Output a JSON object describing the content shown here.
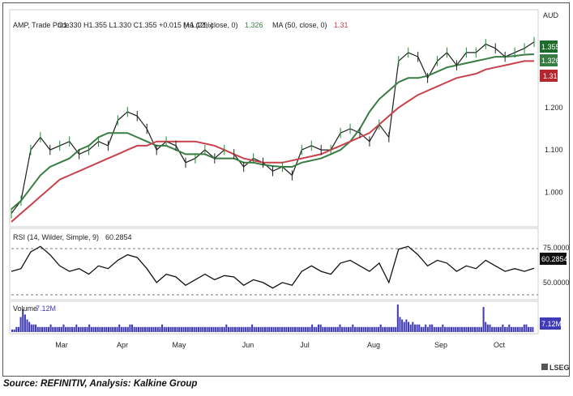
{
  "header": {
    "symbol": "AMP, Trade Price",
    "ohlc": "O1.330  H1.355  L1.330  C1.355  +0.015 (+1.12%)",
    "ma21_label": "MA (21, close, 0)",
    "ma21_value": "1.326",
    "ma50_label": "MA (50, close, 0)",
    "ma50_value": "1.31",
    "currency": "AUD"
  },
  "rsi_panel": {
    "label": "RSI (14, Wilder, Simple, 9)",
    "value": "60.2854"
  },
  "volume_panel": {
    "label": "Volume",
    "value": "7.12M"
  },
  "badges": {
    "price": "1.355",
    "ma21": "1.326",
    "ma50": "1.31",
    "rsi": "60.2854",
    "volume": "7.12M"
  },
  "logo": "LSEG",
  "source": "Source: REFINITIV, Analysis: Kalkine Group",
  "colors": {
    "price": "#1e1e1e",
    "ma21": "#3a7d44",
    "ma50": "#c8414b",
    "volume": "#3f3ab5",
    "up_badge": "#1f6b2a",
    "ma21_badge": "#3a7d44",
    "ma50_badge": "#b5262f"
  },
  "chart_data": [
    {
      "type": "line",
      "panel": "price",
      "x_axis_labels": [
        "Mar",
        "Apr",
        "May",
        "Jun",
        "Jul",
        "Aug",
        "Sep",
        "Oct"
      ],
      "y_ticks": [
        "1.000",
        "1.100",
        "1.200"
      ],
      "ylim": [
        0.93,
        1.37
      ],
      "series": [
        {
          "name": "AMP, Trade Price",
          "values": [
            0.95,
            0.98,
            1.1,
            1.13,
            1.1,
            1.11,
            1.12,
            1.09,
            1.1,
            1.12,
            1.11,
            1.17,
            1.19,
            1.18,
            1.15,
            1.1,
            1.12,
            1.11,
            1.07,
            1.08,
            1.1,
            1.08,
            1.1,
            1.09,
            1.06,
            1.08,
            1.07,
            1.05,
            1.06,
            1.04,
            1.1,
            1.11,
            1.1,
            1.1,
            1.14,
            1.15,
            1.14,
            1.12,
            1.16,
            1.13,
            1.31,
            1.33,
            1.32,
            1.27,
            1.31,
            1.33,
            1.3,
            1.33,
            1.33,
            1.35,
            1.34,
            1.32,
            1.33,
            1.34,
            1.355
          ]
        },
        {
          "name": "MA (21, close, 0)",
          "values": [
            0.96,
            0.98,
            1.01,
            1.04,
            1.06,
            1.07,
            1.08,
            1.1,
            1.11,
            1.13,
            1.14,
            1.14,
            1.14,
            1.13,
            1.12,
            1.11,
            1.11,
            1.1,
            1.09,
            1.09,
            1.09,
            1.08,
            1.08,
            1.08,
            1.07,
            1.07,
            1.065,
            1.062,
            1.06,
            1.06,
            1.07,
            1.075,
            1.08,
            1.09,
            1.1,
            1.12,
            1.15,
            1.19,
            1.22,
            1.24,
            1.26,
            1.27,
            1.27,
            1.275,
            1.285,
            1.295,
            1.3,
            1.305,
            1.31,
            1.315,
            1.32,
            1.32,
            1.322,
            1.325,
            1.326
          ]
        },
        {
          "name": "MA (50, close, 0)",
          "values": [
            0.93,
            0.95,
            0.97,
            0.99,
            1.01,
            1.03,
            1.04,
            1.05,
            1.06,
            1.07,
            1.08,
            1.09,
            1.1,
            1.11,
            1.11,
            1.12,
            1.12,
            1.12,
            1.12,
            1.12,
            1.115,
            1.11,
            1.1,
            1.09,
            1.08,
            1.075,
            1.07,
            1.07,
            1.07,
            1.075,
            1.08,
            1.085,
            1.09,
            1.1,
            1.11,
            1.12,
            1.13,
            1.14,
            1.16,
            1.18,
            1.2,
            1.215,
            1.23,
            1.24,
            1.25,
            1.26,
            1.27,
            1.275,
            1.28,
            1.29,
            1.295,
            1.3,
            1.305,
            1.31,
            1.31
          ]
        }
      ]
    },
    {
      "type": "line",
      "panel": "rsi",
      "y_ticks": [
        "75.0000",
        "50.0000"
      ],
      "ylim": [
        40,
        82
      ],
      "reference_lines": [
        70,
        30
      ],
      "series": [
        {
          "name": "RSI (14, Wilder, Simple, 9)",
          "values": [
            58,
            60,
            72,
            76,
            70,
            62,
            58,
            60,
            56,
            62,
            60,
            66,
            70,
            68,
            60,
            50,
            56,
            54,
            48,
            52,
            56,
            52,
            55,
            54,
            48,
            52,
            50,
            46,
            50,
            48,
            58,
            62,
            58,
            56,
            64,
            66,
            62,
            58,
            64,
            50,
            74,
            76,
            70,
            62,
            66,
            64,
            58,
            62,
            60,
            66,
            62,
            58,
            60,
            58,
            60.2854
          ]
        }
      ]
    },
    {
      "type": "bar",
      "panel": "volume",
      "series": [
        {
          "name": "Volume",
          "values": [
            1,
            1,
            2,
            2,
            6,
            9,
            7,
            5,
            4,
            3,
            3,
            3,
            2,
            2,
            2,
            2,
            2,
            2,
            3,
            2,
            2,
            2,
            2,
            2,
            3,
            2,
            2,
            2,
            2,
            2,
            3,
            2,
            2,
            2,
            2,
            2,
            3,
            2,
            2,
            2,
            2,
            2,
            2,
            2,
            2,
            2,
            2,
            2,
            2,
            2,
            3,
            2,
            2,
            2,
            2,
            3,
            3,
            2,
            2,
            2,
            2,
            2,
            2,
            2,
            2,
            2,
            2,
            2,
            2,
            2,
            3,
            2,
            2,
            2,
            2,
            2,
            2,
            2,
            2,
            2,
            2,
            2,
            2,
            2,
            2,
            2,
            2,
            2,
            2,
            2,
            2,
            2,
            2,
            2,
            2,
            2,
            2,
            2,
            2,
            2,
            3,
            2,
            2,
            2,
            2,
            2,
            2,
            2,
            2,
            2,
            2,
            2,
            3,
            2,
            2,
            2,
            2,
            2,
            2,
            2,
            2,
            2,
            2,
            2,
            2,
            2,
            2,
            2,
            2,
            2,
            2,
            2,
            2,
            2,
            2,
            2,
            2,
            2,
            2,
            2,
            3,
            2,
            2,
            3,
            3,
            2,
            2,
            2,
            2,
            2,
            2,
            2,
            2,
            3,
            2,
            2,
            2,
            2,
            2,
            3,
            2,
            2,
            2,
            2,
            2,
            2,
            2,
            2,
            2,
            2,
            2,
            2,
            3,
            2,
            2,
            2,
            2,
            2,
            2,
            2,
            11,
            6,
            5,
            4,
            5,
            4,
            3,
            4,
            3,
            3,
            3,
            2,
            2,
            3,
            2,
            3,
            3,
            2,
            2,
            2,
            2,
            3,
            2,
            2,
            2,
            2,
            2,
            2,
            2,
            2,
            2,
            2,
            2,
            2,
            2,
            2,
            2,
            2,
            2,
            2,
            10,
            4,
            3,
            3,
            2,
            2,
            2,
            2,
            2,
            3,
            2,
            2,
            3,
            2,
            2,
            2,
            2,
            2,
            2,
            3,
            3,
            2,
            2,
            2
          ]
        }
      ]
    }
  ]
}
